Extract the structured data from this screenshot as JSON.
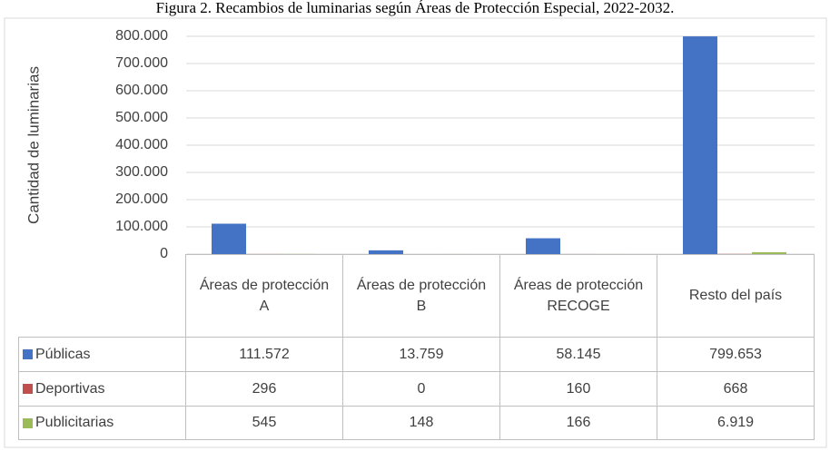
{
  "chart_data": {
    "type": "bar",
    "title": "Figura 2. Recambios de luminarias según Áreas de Protección Especial, 2022-2032.",
    "y_label": "Cantidad de luminarias",
    "categories": [
      "Áreas de protección A",
      "Áreas de protección B",
      "Áreas de protección RECOGE",
      "Resto del país"
    ],
    "series": [
      {
        "name": "Públicas",
        "color": "#4472c4",
        "values": [
          111572,
          13759,
          58145,
          799653
        ],
        "value_labels": [
          "111.572",
          "13.759",
          "58.145",
          "799.653"
        ]
      },
      {
        "name": "Deportivas",
        "color": "#c0504d",
        "values": [
          296,
          0,
          160,
          668
        ],
        "value_labels": [
          "296",
          "0",
          "160",
          "668"
        ]
      },
      {
        "name": "Publicitarias",
        "color": "#9bbb59",
        "values": [
          545,
          148,
          166,
          6919
        ],
        "value_labels": [
          "545",
          "148",
          "166",
          "6.919"
        ]
      }
    ],
    "ylim": [
      0,
      800000
    ],
    "yticks": [
      0,
      {
        "value": 100000,
        "label": "100.000"
      },
      {
        "value": 200000,
        "label": "200.000"
      },
      {
        "value": 300000,
        "label": "300.000"
      },
      {
        "value": 400000,
        "label": "400.000"
      },
      {
        "value": 500000,
        "label": "500.000"
      },
      {
        "value": 600000,
        "label": "600.000"
      },
      {
        "value": 700000,
        "label": "700.000"
      },
      {
        "value": 800000,
        "label": "800.000"
      }
    ],
    "grid": true
  }
}
